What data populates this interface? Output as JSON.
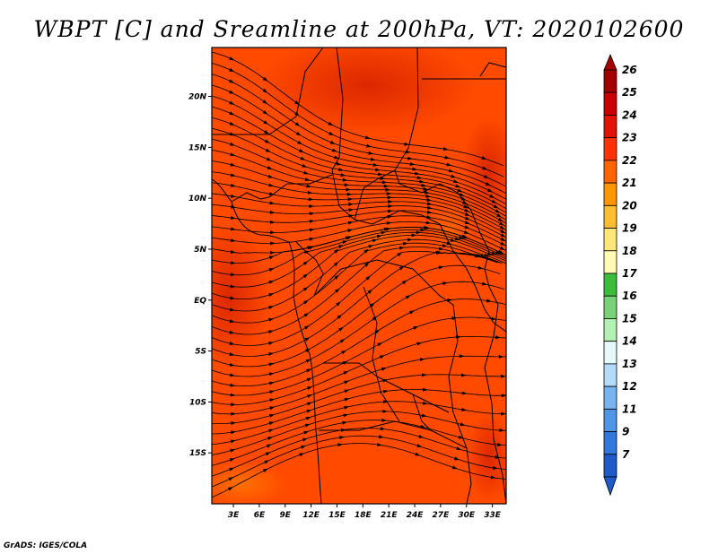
{
  "title": "WBPT [C] and Sreamline at 200hPa, VT: 2020102600",
  "credit": "GrADS: IGES/COLA",
  "map": {
    "lon_labels": [
      "3E",
      "6E",
      "9E",
      "12E",
      "15E",
      "18E",
      "21E",
      "24E",
      "27E",
      "30E",
      "33E"
    ],
    "lat_labels": [
      "20N",
      "15N",
      "10N",
      "5N",
      "EQ",
      "5S",
      "10S",
      "15S"
    ],
    "lon_values": [
      3,
      6,
      9,
      12,
      15,
      18,
      21,
      24,
      27,
      30,
      33
    ],
    "lat_values": [
      20,
      15,
      10,
      5,
      0,
      -5,
      -10,
      -15
    ],
    "lon_range": [
      0.5,
      34.6
    ],
    "lat_range": [
      -20,
      24.8
    ],
    "field_color": "#ff4a00",
    "warm_color": "#e02a00",
    "cool_color": "#ff6a00"
  },
  "colorbar": {
    "labels": [
      "26",
      "25",
      "24",
      "23",
      "22",
      "21",
      "20",
      "19",
      "18",
      "17",
      "16",
      "15",
      "14",
      "13",
      "12",
      "11",
      "9",
      "7"
    ],
    "colors": [
      "#a50000",
      "#c80000",
      "#e11400",
      "#ff3200",
      "#ff6400",
      "#ff9600",
      "#ffbe32",
      "#ffe678",
      "#fffab4",
      "#3cbe3c",
      "#78d278",
      "#b4f0b4",
      "#e6fafa",
      "#b4dcfa",
      "#78b4f0",
      "#5096e6",
      "#3278dc",
      "#1e5ac8"
    ]
  }
}
